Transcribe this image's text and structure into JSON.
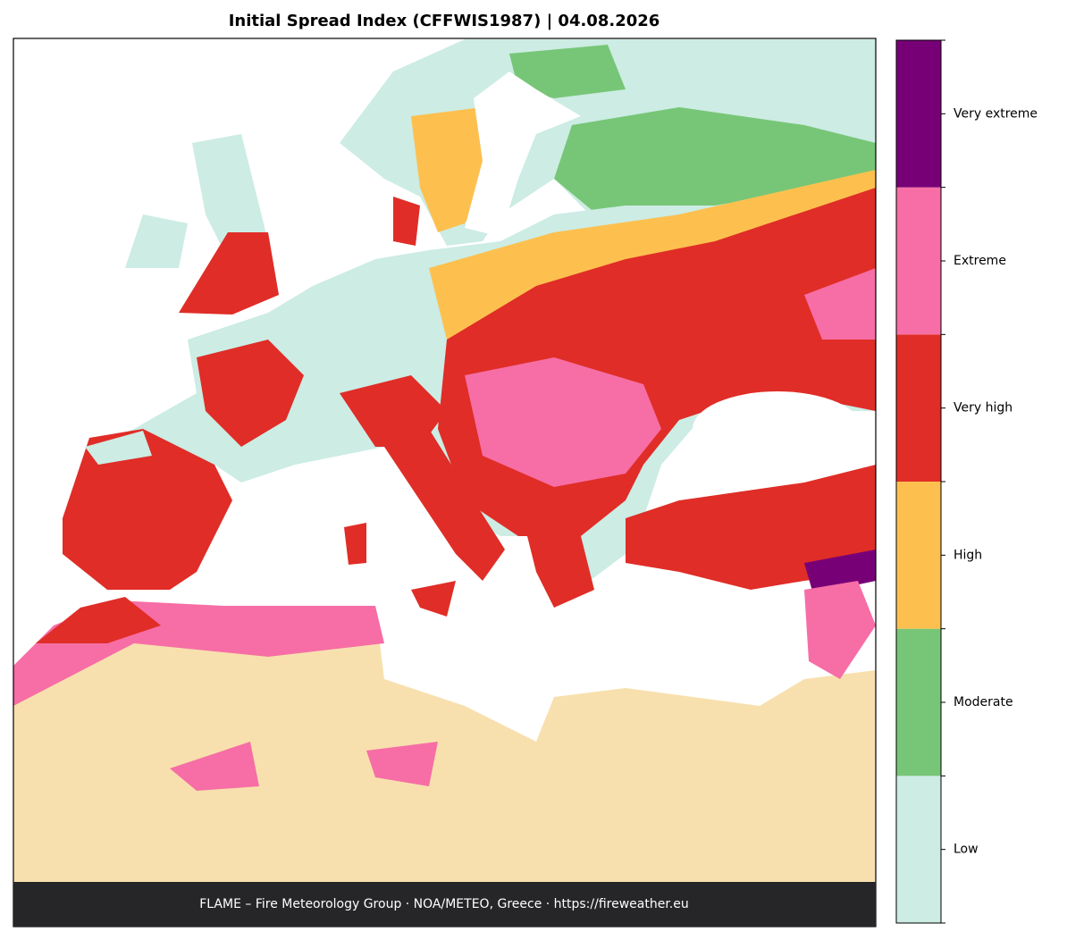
{
  "title": "Initial Spread Index (CFFWIS1987)  |  04.08.2026",
  "footer": "FLAME – Fire Meteorology Group · NOA/METEO, Greece · https://fireweather.eu",
  "legend": [
    {
      "label": "Low",
      "color": "#ccece4"
    },
    {
      "label": "Moderate",
      "color": "#77c677"
    },
    {
      "label": "High",
      "color": "#fdc04f"
    },
    {
      "label": "Very high",
      "color": "#e02d27"
    },
    {
      "label": "Extreme",
      "color": "#f66ea5"
    },
    {
      "label": "Very extreme",
      "color": "#770077"
    }
  ]
}
